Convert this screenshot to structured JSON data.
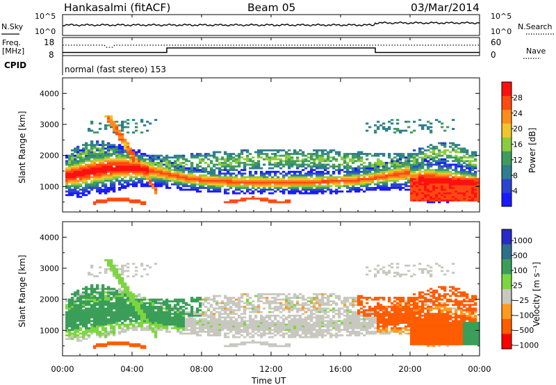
{
  "header": {
    "station": "Hankasalmi (fitACF)",
    "beam": "Beam 05",
    "date": "03/Mar/2014"
  },
  "top_panels": {
    "nsky_label": "N.Sky",
    "nsky_ticks": [
      "10^5",
      "10^0"
    ],
    "nsearch_label": "N.Search",
    "nsearch_ticks": [
      "10^5",
      "10^0"
    ],
    "freq_label_1": "Freq.",
    "freq_label_2": "[MHz]",
    "freq_ticks": [
      "18",
      "8"
    ],
    "nave_label": "Nave",
    "nave_ticks": [
      "60",
      "0"
    ],
    "cpid_label": "CPID",
    "cpid_text": "normal (fast stereo) 153"
  },
  "colors": {
    "power_scale": [
      "#1a1aff",
      "#2b43d0",
      "#2e7e8e",
      "#3f9c5e",
      "#8ccc3c",
      "#f0c52a",
      "#ff8c1a",
      "#ff4a12",
      "#ff1010"
    ],
    "velocity_scale": [
      "#ff0000",
      "#ff5c00",
      "#ff9a1e",
      "#c8c8c0",
      "#c8c8c0",
      "#7cd640",
      "#3a9e58",
      "#2e6f8a",
      "#2929c8"
    ]
  },
  "chart_data": [
    {
      "type": "heatmap",
      "quantity": "Power",
      "ylabel": "Slant Range [km]",
      "ylim": [
        180,
        4500
      ],
      "yticks": [
        "1000",
        "2000",
        "3000",
        "4000"
      ],
      "xlim": [
        0,
        24
      ],
      "colorbar": {
        "label": "Power [dB]",
        "ticks": [
          "4",
          "8",
          "12",
          "16",
          "20",
          "24",
          "28"
        ],
        "range": [
          0,
          32
        ]
      }
    },
    {
      "type": "heatmap",
      "quantity": "Velocity",
      "ylabel": "Slant Range [km]",
      "ylim": [
        180,
        4500
      ],
      "yticks": [
        "1000",
        "2000",
        "3000",
        "4000"
      ],
      "xlim": [
        0,
        24
      ],
      "xticks": [
        "00:00",
        "04:00",
        "08:00",
        "12:00",
        "16:00",
        "20:00",
        "00:00"
      ],
      "xlabel": "Time UT",
      "colorbar": {
        "label": "Velocity [m s⁻¹]",
        "ticks": [
          "1000",
          "500",
          "100",
          "25",
          "−25",
          "−100",
          "−500",
          "−1000"
        ]
      }
    }
  ]
}
